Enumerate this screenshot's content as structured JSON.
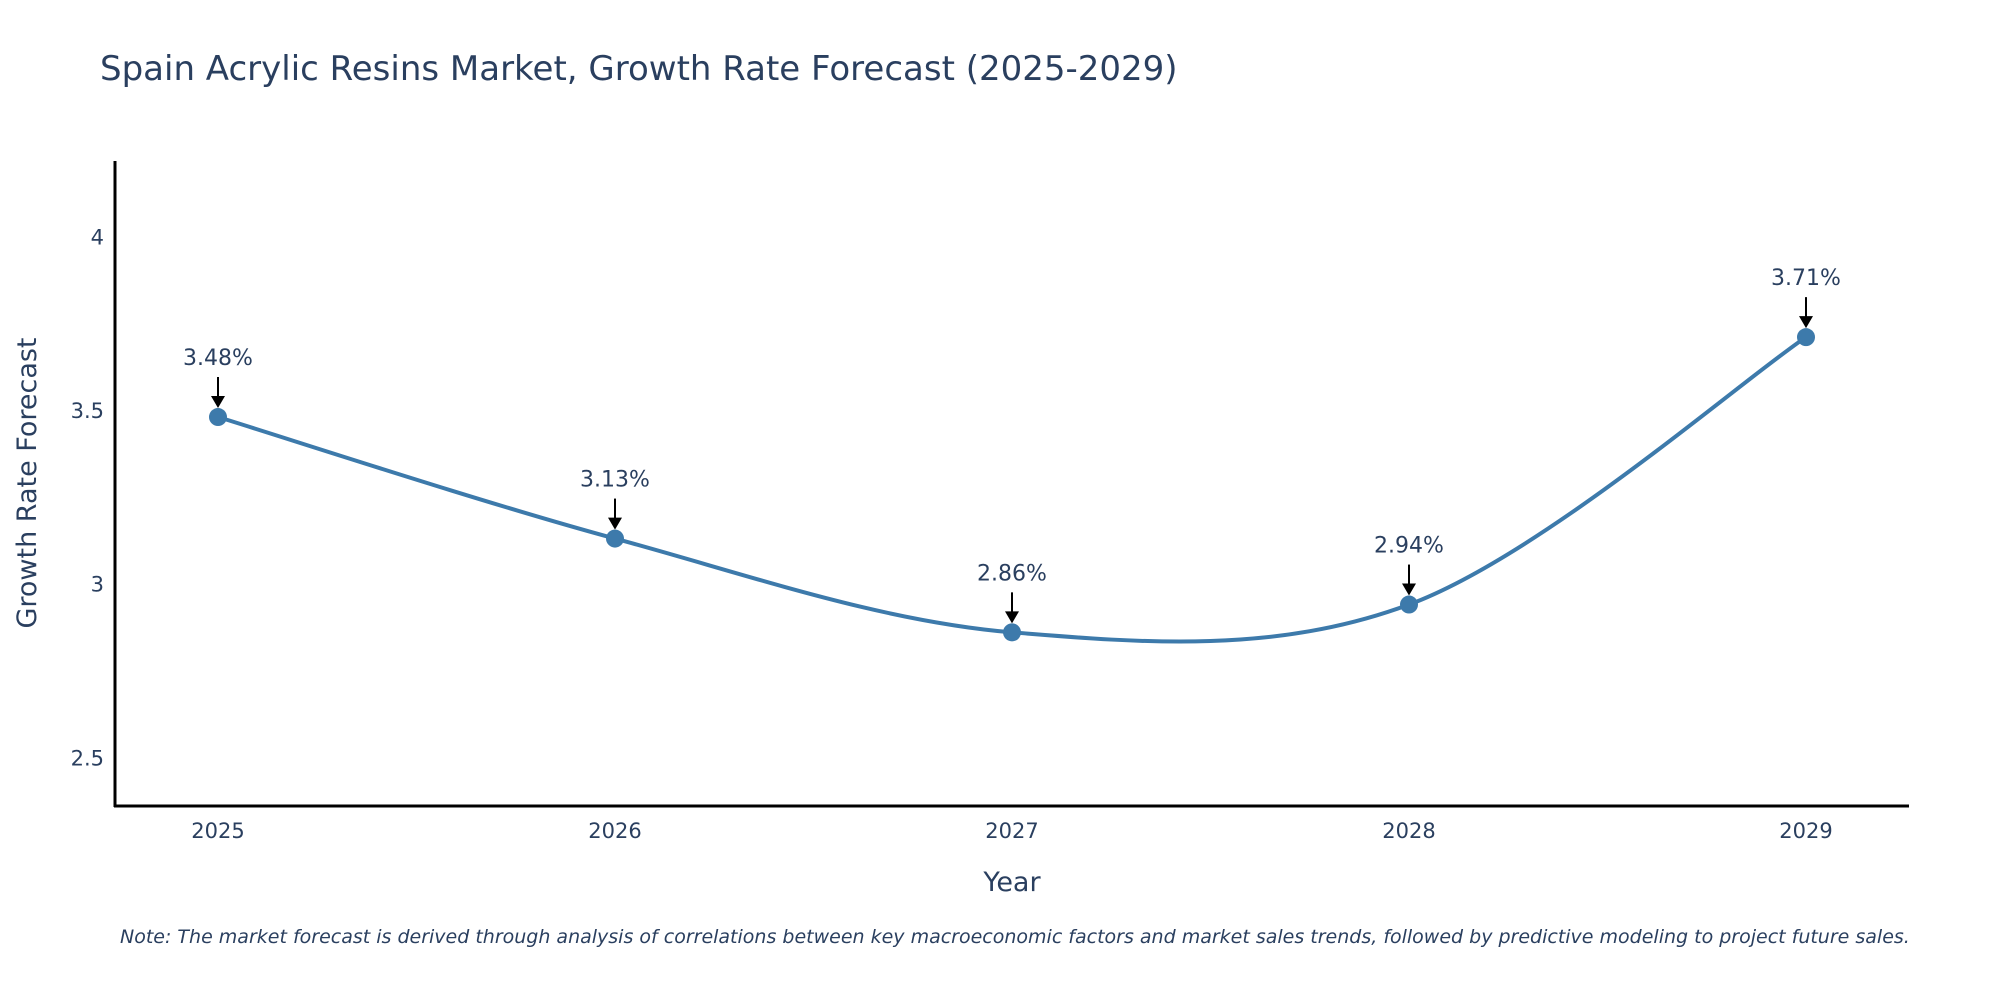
{
  "chart_data": {
    "type": "line",
    "title": "Spain Acrylic Resins Market, Growth Rate Forecast (2025-2029)",
    "xlabel": "Year",
    "ylabel": "Growth Rate Forecast",
    "categories": [
      "2025",
      "2026",
      "2027",
      "2028",
      "2029"
    ],
    "values": [
      3.48,
      3.13,
      2.86,
      2.94,
      3.71
    ],
    "data_labels": [
      "3.48%",
      "3.13%",
      "2.86%",
      "2.94%",
      "3.71%"
    ],
    "ylim": [
      2.36,
      4.22
    ],
    "yticks": [
      2.5,
      3,
      3.5,
      4
    ],
    "ytick_labels": [
      "2.5",
      "3",
      "3.5",
      "4"
    ],
    "grid": false,
    "line_color": "#3d7aab",
    "marker_color": "#3d7aab",
    "note": "Note: The market forecast is derived through analysis of correlations between key macroeconomic factors and market sales trends, followed by predictive modeling to project future sales."
  }
}
